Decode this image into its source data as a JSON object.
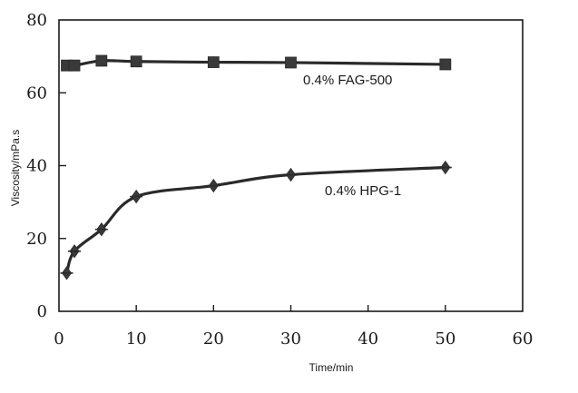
{
  "chart_data": {
    "type": "line",
    "title": "",
    "xlabel": "Time/min",
    "ylabel": "Viscosity/mPa.s",
    "xlim": [
      0,
      60
    ],
    "ylim": [
      0,
      80
    ],
    "x_ticks": [
      "0",
      "10",
      "20",
      "30",
      "40",
      "50",
      "60"
    ],
    "y_ticks": [
      "0",
      "20",
      "40",
      "60",
      "80"
    ],
    "grid": false,
    "series": [
      {
        "name": "0.4% FAG-500",
        "marker": "square",
        "points": [
          {
            "x": 1,
            "y": 67.5
          },
          {
            "x": 2,
            "y": 67.5
          },
          {
            "x": 5.5,
            "y": 68.8
          },
          {
            "x": 10,
            "y": 68.6
          },
          {
            "x": 20,
            "y": 68.4
          },
          {
            "x": 30,
            "y": 68.3
          },
          {
            "x": 50,
            "y": 67.8
          }
        ]
      },
      {
        "name": "0.4% HPG-1",
        "marker": "diamond",
        "points": [
          {
            "x": 1,
            "y": 10.5
          },
          {
            "x": 2,
            "y": 16.5
          },
          {
            "x": 5.5,
            "y": 22.5
          },
          {
            "x": 10,
            "y": 31.5
          },
          {
            "x": 20,
            "y": 34.5
          },
          {
            "x": 30,
            "y": 37.5
          },
          {
            "x": 50,
            "y": 39.5
          }
        ]
      }
    ],
    "annotations": [
      {
        "text": "0.4% FAG-500",
        "series": 0,
        "anchor": "below-right"
      },
      {
        "text": "0.4% HPG-1",
        "series": 1,
        "anchor": "below-right"
      }
    ]
  },
  "colors": {
    "line": "#2a2a2a",
    "marker": "#3a3a3a",
    "frame": "#1a1a1a"
  }
}
